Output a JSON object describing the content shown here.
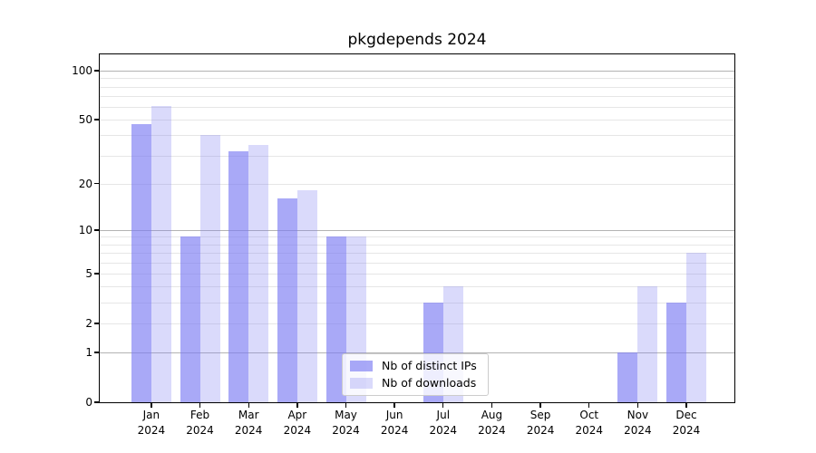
{
  "chart_data": {
    "type": "bar",
    "title": "pkgdepends 2024",
    "months": [
      "Jan",
      "Feb",
      "Mar",
      "Apr",
      "May",
      "Jun",
      "Jul",
      "Aug",
      "Sep",
      "Oct",
      "Nov",
      "Dec"
    ],
    "year": "2024",
    "series": [
      {
        "name": "Nb of distinct IPs",
        "color": "rgba(123,123,242,0.65)",
        "values": [
          47,
          9,
          32,
          16,
          9,
          0,
          3,
          0,
          0,
          0,
          1,
          3
        ]
      },
      {
        "name": "Nb of downloads",
        "color": "rgba(123,123,242,0.28)",
        "values": [
          61,
          40,
          35,
          18,
          9,
          0,
          4,
          0,
          0,
          0,
          4,
          7
        ]
      }
    ],
    "y_axis": {
      "scale": "log10(1+x)",
      "tick_labels": [
        0,
        1,
        2,
        5,
        10,
        20,
        50,
        100
      ],
      "major_gridlines": [
        1,
        10,
        100
      ],
      "minor_gridlines": [
        2,
        3,
        4,
        5,
        6,
        7,
        8,
        9,
        20,
        30,
        40,
        50,
        60,
        70,
        80,
        90
      ],
      "top_value": 100
    },
    "grid": "horizontal",
    "legend_position": "inside-bottom-center"
  },
  "colors": {
    "background": "#ffffff",
    "spine": "#000000",
    "major_grid": "#b3b3b3",
    "minor_grid": "#e6e6e6",
    "legend_border": "#cccccc",
    "legend_background": "rgba(255,255,255,0.8)"
  }
}
